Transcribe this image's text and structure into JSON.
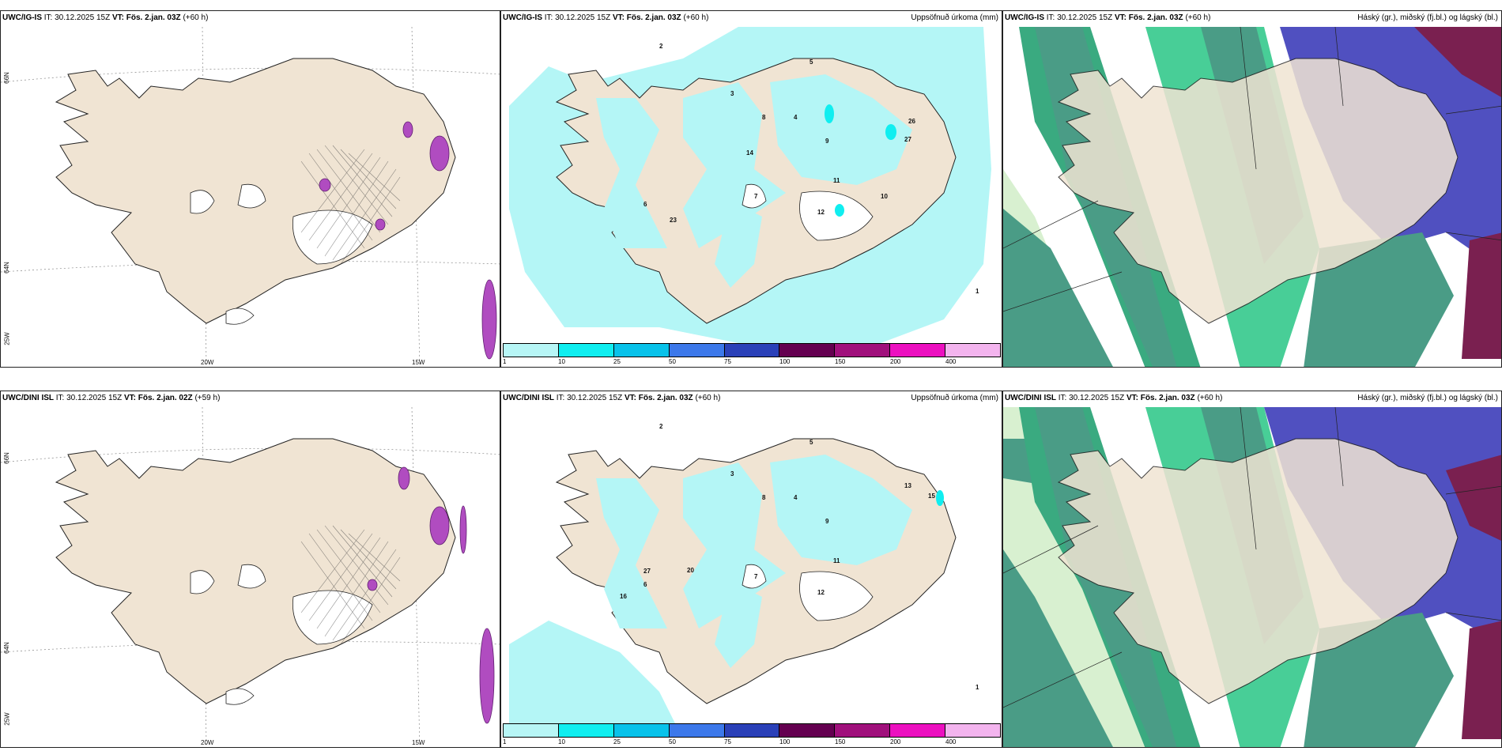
{
  "panels": {
    "p1": {
      "model": "UWC/IG-IS",
      "it": "IT: 30.12.2025 15Z",
      "vt": "VT: Fös. 2.jan. 03Z",
      "lead": "(+60 h)",
      "right": ""
    },
    "p2": {
      "model": "UWC/IG-IS",
      "it": "IT: 30.12.2025 15Z",
      "vt": "VT: Fös. 2.jan. 03Z",
      "lead": "(+60 h)",
      "right": "Uppsöfnuð úrkoma (mm)"
    },
    "p3": {
      "model": "UWC/IG-IS",
      "it": "IT: 30.12.2025 15Z",
      "vt": "VT: Fös. 2.jan. 03Z",
      "lead": "(+60 h)",
      "right": "Háský (gr.), miðský (fj.bl.) og lágský (bl.)"
    },
    "p4": {
      "model": "UWC/DINI ISL",
      "it": "IT: 30.12.2025 15Z",
      "vt": "VT: Fös. 2.jan. 02Z",
      "lead": "(+59 h)",
      "right": ""
    },
    "p5": {
      "model": "UWC/DINI ISL",
      "it": "IT: 30.12.2025 15Z",
      "vt": "VT: Fös. 2.jan. 03Z",
      "lead": "(+60 h)",
      "right": "Uppsöfnuð úrkoma (mm)"
    },
    "p6": {
      "model": "UWC/DINI ISL",
      "it": "IT: 30.12.2025 15Z",
      "vt": "VT: Fös. 2.jan. 03Z",
      "lead": "(+60 h)",
      "right": "Háský (gr.), miðský (fj.bl.) og lágský (bl.)"
    }
  },
  "axis_labels": {
    "lon1": "20W",
    "lon2": "15W",
    "lat1": "66N",
    "lat2": "64N",
    "lat3": "25W"
  },
  "colorbar": {
    "labels": [
      "1",
      "10",
      "25",
      "50",
      "75",
      "100",
      "150",
      "200",
      "400"
    ],
    "colors": [
      "#b7f6f6",
      "#10eef0",
      "#08c2ea",
      "#3c78ea",
      "#2a40b8",
      "#640050",
      "#a0107c",
      "#ec10c0",
      "#f3b4ee"
    ]
  },
  "precip_numbers_top": [
    "2",
    "3",
    "4",
    "5",
    "8",
    "9",
    "7",
    "6",
    "11",
    "12",
    "14",
    "10",
    "23",
    "26",
    "27",
    "1"
  ],
  "precip_numbers_bottom": [
    "2",
    "3",
    "4",
    "5",
    "8",
    "9",
    "7",
    "6",
    "11",
    "12",
    "13",
    "15",
    "16",
    "27",
    "20",
    "1"
  ],
  "colors": {
    "land": "#f0e4d3",
    "sea": "#ffffff",
    "precip": "#b4f6f6",
    "cloud_high": "#4a9c86",
    "cloud_mid": "#5050c0",
    "cloud_low": "#7a2050",
    "cloud_green": "#34c98c"
  }
}
